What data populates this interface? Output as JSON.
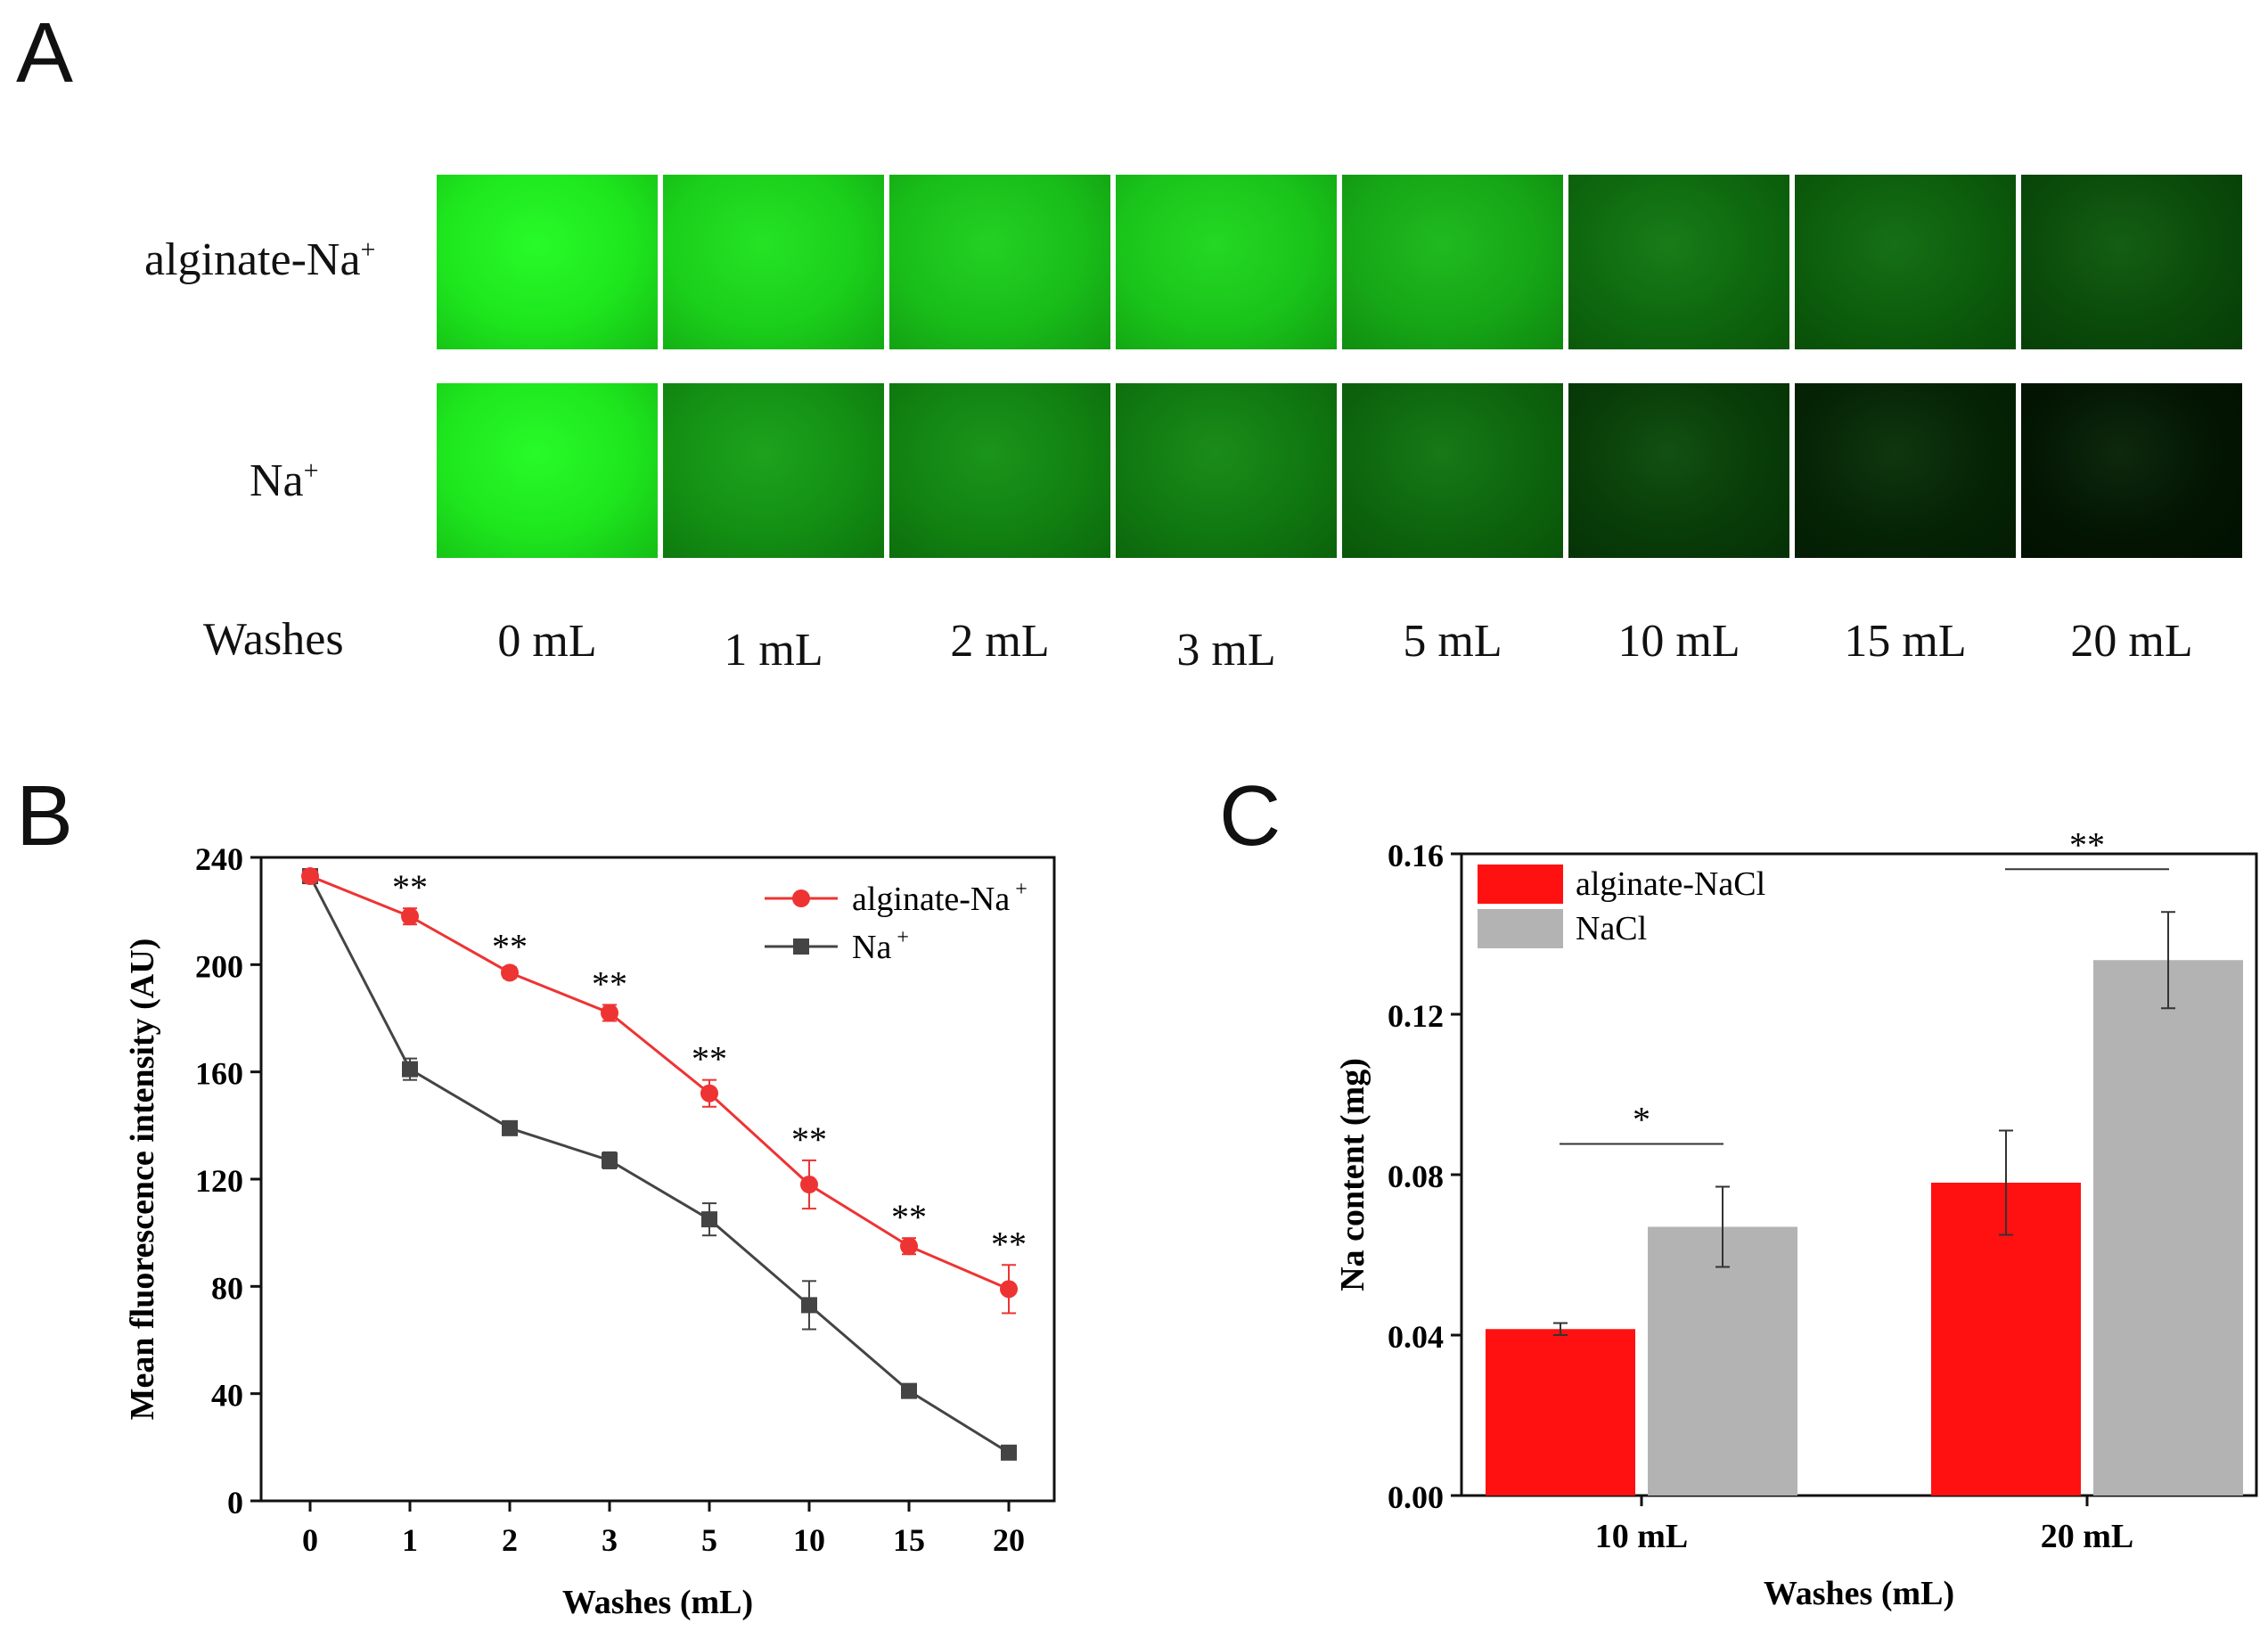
{
  "panelA": {
    "letter": "A",
    "rows": [
      {
        "label": "alginate-Na",
        "sup": "+"
      },
      {
        "label": "Na",
        "sup": "+"
      }
    ],
    "washes_label": "Washes",
    "columns": [
      "0 mL",
      "1 mL",
      "2 mL",
      "3 mL",
      "5 mL",
      "10 mL",
      "15 mL",
      "20 mL"
    ],
    "brightness": {
      "alginate": [
        1.0,
        0.9,
        0.82,
        0.85,
        0.72,
        0.45,
        0.4,
        0.32
      ],
      "na": [
        1.0,
        0.62,
        0.56,
        0.52,
        0.44,
        0.26,
        0.15,
        0.09
      ]
    },
    "tile_color": "#22dd22"
  },
  "chart_data": [
    {
      "panel": "B",
      "type": "line",
      "title": "",
      "xlabel": "Washes (mL)",
      "ylabel": "Mean fluorescence intensity (AU)",
      "categories": [
        "0",
        "1",
        "2",
        "3",
        "5",
        "10",
        "15",
        "20"
      ],
      "ylim": [
        0,
        240
      ],
      "yticks": [
        "0",
        "40",
        "80",
        "120",
        "160",
        "200",
        "240"
      ],
      "legend_position": "top-right",
      "series": [
        {
          "name": "alginate-Na",
          "sup": "+",
          "color": "#ee3333",
          "marker": "circle",
          "values": [
            233,
            218,
            197,
            182,
            152,
            118,
            95,
            79
          ],
          "errors": [
            2,
            3,
            2,
            3,
            5,
            9,
            3,
            9
          ]
        },
        {
          "name": "Na",
          "sup": "+",
          "color": "#444444",
          "marker": "square",
          "values": [
            233,
            161,
            139,
            127,
            105,
            73,
            41,
            18
          ],
          "errors": [
            2,
            4,
            2,
            3,
            6,
            9,
            2,
            1
          ]
        }
      ],
      "annotations": [
        "",
        "**",
        "**",
        "**",
        "**",
        "**",
        "**",
        "**"
      ]
    },
    {
      "panel": "C",
      "type": "bar",
      "title": "",
      "xlabel": "Washes (mL)",
      "ylabel": "Na content (mg)",
      "categories": [
        "10 mL",
        "20 mL"
      ],
      "ylim": [
        0,
        0.16
      ],
      "yticks": [
        "0.00",
        "0.04",
        "0.08",
        "0.12",
        "0.16"
      ],
      "legend_position": "top-left",
      "series": [
        {
          "name": "alginate-NaCl",
          "color": "#ff1111",
          "values": [
            0.0415,
            0.078
          ],
          "errors": [
            0.0015,
            0.013
          ]
        },
        {
          "name": "NaCl",
          "color": "#b3b3b3",
          "values": [
            0.067,
            0.1335
          ],
          "errors": [
            0.01,
            0.012
          ]
        }
      ],
      "annotations": [
        "*",
        "**"
      ]
    }
  ],
  "labels": {
    "panelB": "B",
    "panelC": "C"
  }
}
